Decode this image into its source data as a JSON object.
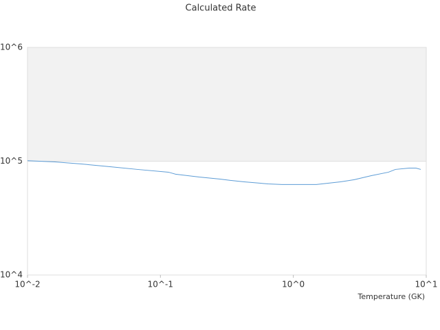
{
  "chart_data": {
    "type": "line",
    "title": "Calculated Rate",
    "x_label": "Temperature (GK)",
    "x": [
      0.01,
      0.0161,
      0.0254,
      0.0418,
      0.0673,
      0.115,
      0.13,
      0.196,
      0.281,
      0.336,
      0.427,
      0.647,
      0.821,
      1.49,
      2.26,
      2.87,
      3.86,
      5.2,
      5.86,
      7.43,
      8.37,
      9.1
    ],
    "series": [
      {
        "color": "#5b9bd5",
        "values": [
          101000,
          98600,
          94600,
          89500,
          84700,
          80100,
          76900,
          72600,
          69700,
          67800,
          65900,
          63200,
          62400,
          62400,
          65900,
          68800,
          74700,
          80100,
          84700,
          87000,
          87000,
          84700
        ]
      }
    ],
    "xlim": [
      0.01,
      10
    ],
    "ylim": [
      10000,
      1000000
    ],
    "xticks": [
      {
        "value": 0.01,
        "label": "10^-2"
      },
      {
        "value": 0.1,
        "label": "10^-1"
      },
      {
        "value": 1,
        "label": "10^0"
      },
      {
        "value": 10,
        "label": "10^1"
      }
    ],
    "yticks": [
      {
        "value": 10000,
        "label": "10^4"
      },
      {
        "value": 100000,
        "label": "10^5"
      },
      {
        "value": 1000000,
        "label": "10^6"
      }
    ],
    "xscale": "log",
    "yscale": "log",
    "grid": true
  }
}
